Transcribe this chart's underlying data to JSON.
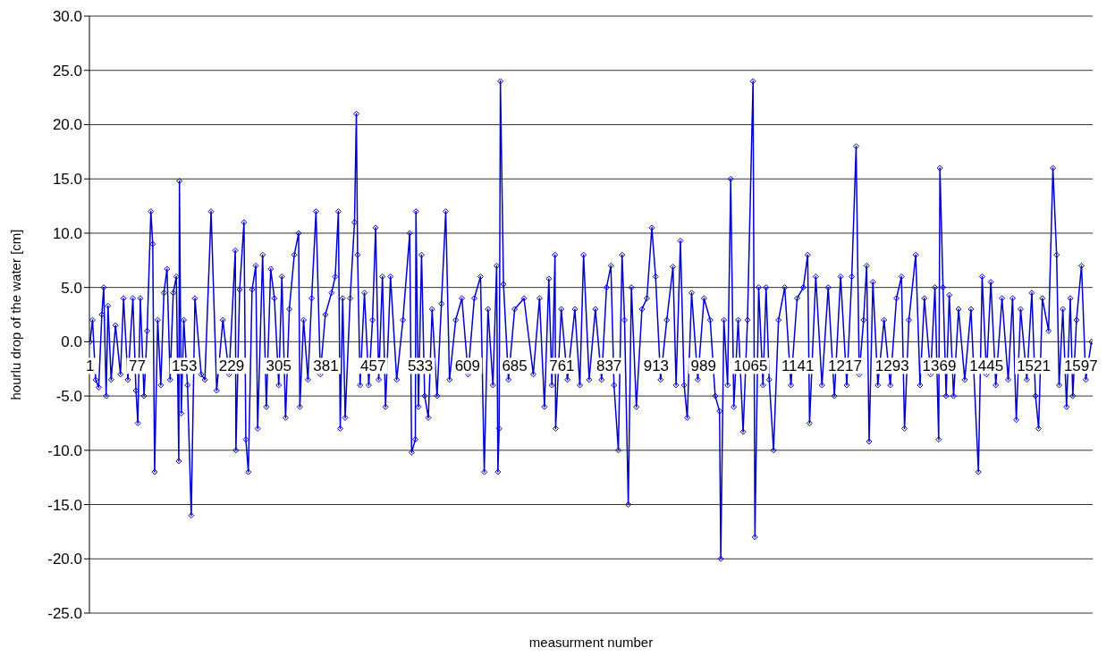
{
  "chart_data": {
    "type": "line",
    "xlabel": "measurment number",
    "ylabel": "hourlu drop of the water [cm]",
    "xlim": [
      0,
      1616
    ],
    "xticks": [
      1,
      77,
      153,
      229,
      305,
      381,
      457,
      533,
      609,
      685,
      761,
      837,
      913,
      989,
      1065,
      1141,
      1217,
      1293,
      1369,
      1445,
      1521,
      1597
    ],
    "ylim": [
      -25,
      30
    ],
    "yticks": [
      {
        "value": -25,
        "label": "-25.0"
      },
      {
        "value": -20,
        "label": "-20.0"
      },
      {
        "value": -15,
        "label": "-15.0"
      },
      {
        "value": -10,
        "label": "-10.0"
      },
      {
        "value": -5,
        "label": "-5.0"
      },
      {
        "value": 0,
        "label": "0.0"
      },
      {
        "value": 5,
        "label": "5.0"
      },
      {
        "value": 10,
        "label": "10.0"
      },
      {
        "value": 15,
        "label": "15.0"
      },
      {
        "value": 20,
        "label": "20.0"
      },
      {
        "value": 25,
        "label": "25.0"
      },
      {
        "value": 30,
        "label": "30.0"
      }
    ],
    "grid": "y",
    "marker": "diamond",
    "series": [
      {
        "color": "#0000cc",
        "x": [
          1,
          5,
          10,
          15,
          20,
          23,
          27,
          30,
          35,
          42,
          50,
          55,
          62,
          70,
          75,
          78,
          82,
          88,
          93,
          99,
          102,
          105,
          110,
          115,
          120,
          125,
          130,
          135,
          140,
          144,
          145,
          148,
          152,
          158,
          164,
          170,
          180,
          186,
          196,
          205,
          215,
          225,
          235,
          236,
          242,
          249,
          252,
          256,
          262,
          268,
          271,
          279,
          285,
          292,
          298,
          305,
          310,
          316,
          322,
          330,
          337,
          339,
          345,
          352,
          358,
          365,
          372,
          380,
          390,
          396,
          401,
          404,
          408,
          412,
          420,
          427,
          430,
          432,
          436,
          443,
          450,
          456,
          461,
          466,
          472,
          477,
          485,
          495,
          505,
          516,
          519,
          525,
          526,
          530,
          535,
          540,
          546,
          552,
          560,
          567,
          574,
          580,
          590,
          600,
          610,
          620,
          630,
          636,
          642,
          650,
          656,
          658,
          660,
          662,
          667,
          675,
          685,
          700,
          715,
          725,
          733,
          740,
          745,
          750,
          751,
          760,
          770,
          782,
          790,
          796,
          805,
          815,
          825,
          833,
          840,
          845,
          852,
          858,
          862,
          868,
          873,
          881,
          890,
          898,
          906,
          912,
          920,
          930,
          940,
          945,
          952,
          958,
          963,
          970,
          980,
          990,
          1000,
          1008,
          1015,
          1017,
          1022,
          1028,
          1033,
          1038,
          1045,
          1053,
          1060,
          1069,
          1072,
          1078,
          1085,
          1090,
          1095,
          1102,
          1110,
          1120,
          1130,
          1140,
          1150,
          1157,
          1160,
          1170,
          1180,
          1190,
          1200,
          1210,
          1220,
          1228,
          1235,
          1240,
          1247,
          1252,
          1256,
          1262,
          1270,
          1280,
          1290,
          1300,
          1308,
          1313,
          1320,
          1331,
          1338,
          1345,
          1355,
          1362,
          1368,
          1370,
          1375,
          1380,
          1385,
          1392,
          1400,
          1410,
          1420,
          1432,
          1438,
          1445,
          1452,
          1460,
          1470,
          1480,
          1487,
          1493,
          1500,
          1510,
          1518,
          1524,
          1529,
          1535,
          1545,
          1552,
          1558,
          1562,
          1568,
          1574,
          1580,
          1584,
          1590,
          1598,
          1605,
          1614
        ],
        "values": [
          0,
          2,
          -3.5,
          -4.2,
          2.5,
          5,
          -5,
          3.3,
          -3.5,
          1.5,
          -3,
          4,
          -3.5,
          4,
          -4.5,
          -7.5,
          4,
          -5,
          1,
          12,
          9,
          -12,
          2,
          -4,
          4.5,
          6.7,
          -3.5,
          4.5,
          6,
          -11,
          14.8,
          -6.6,
          2,
          -4,
          -16,
          4,
          -3,
          -3.5,
          12,
          -4.5,
          2,
          -3,
          8.4,
          -10,
          4.8,
          11,
          -9,
          -12,
          4.8,
          7,
          -8,
          8,
          -6,
          6.7,
          4,
          -4,
          6,
          -7,
          3,
          8,
          10,
          -6,
          2,
          -3.5,
          4,
          12,
          -3,
          2.5,
          4.5,
          6,
          12,
          -8,
          4,
          -7,
          4,
          11,
          21,
          8,
          -4,
          4.5,
          -4,
          2,
          10.5,
          -3.5,
          6,
          -6,
          6,
          -3.5,
          2,
          10,
          -10.2,
          -9,
          12,
          -6,
          8,
          -5,
          -7,
          3,
          -5,
          3.5,
          12,
          -3.5,
          2,
          4,
          -3,
          4,
          6,
          -12,
          3,
          -4,
          7,
          -12,
          -8,
          24,
          5.3,
          -3.5,
          3,
          4,
          -3,
          4,
          -6,
          5.8,
          -4,
          8,
          -8,
          3,
          -3.5,
          3,
          -4,
          8,
          -3.5,
          3,
          -3.5,
          5,
          7,
          -4,
          -10,
          8,
          2,
          -15,
          5,
          -6,
          3,
          4,
          10.5,
          6,
          -3.5,
          2,
          6.9,
          -4,
          9.3,
          -4,
          -7,
          4.5,
          -3.5,
          4,
          2,
          -5,
          -6.4,
          -20,
          2,
          -4,
          15,
          -6,
          2,
          -8.3,
          2,
          24,
          -18,
          5,
          -4,
          5,
          -3.5,
          -10,
          2,
          5,
          -4,
          4,
          5,
          8,
          -7.5,
          6,
          -4,
          5,
          -5,
          6,
          -4,
          6,
          18,
          -3,
          2,
          7,
          -9.2,
          5.5,
          -4,
          2,
          -4,
          4,
          6,
          -8,
          2,
          8,
          -4,
          4,
          -3,
          5,
          -9,
          16,
          5,
          -5,
          4.3,
          -5,
          3,
          -3.5,
          3,
          -12,
          6,
          -3,
          5.5,
          -4,
          4,
          -3.5,
          4,
          -7.2,
          3,
          -3.5,
          4.5,
          -5,
          -8,
          4,
          1,
          16,
          8,
          -4,
          3,
          -6,
          4,
          -5,
          2,
          7,
          -3.5,
          0
        ]
      }
    ]
  }
}
